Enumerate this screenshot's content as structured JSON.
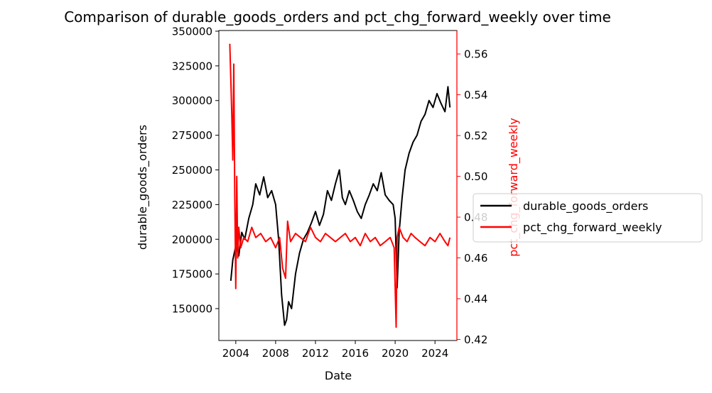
{
  "chart_data": {
    "type": "line",
    "title": "Comparison of durable_goods_orders and pct_chg_forward_weekly over time",
    "xlabel": "Date",
    "ylabel_left": "durable_goods_orders",
    "ylabel_right": "pct_chg_forward_weekly",
    "x_ticks": [
      "2004",
      "2008",
      "2012",
      "2016",
      "2020",
      "2024"
    ],
    "y_left_ticks": [
      "150000",
      "175000",
      "200000",
      "225000",
      "250000",
      "275000",
      "300000",
      "325000",
      "350000"
    ],
    "y_right_ticks": [
      "0.42",
      "0.44",
      "0.46",
      "0.48",
      "0.50",
      "0.52",
      "0.54",
      "0.56"
    ],
    "xlim": [
      2002.3,
      2026.2
    ],
    "ylim_left": [
      127000,
      350500
    ],
    "ylim_right": [
      0.4195,
      0.5715
    ],
    "grid": false,
    "legend_position": "center-right, outside plot",
    "series": [
      {
        "name": "durable_goods_orders",
        "axis": "left",
        "color": "#000000",
        "x": [
          2003.5,
          2003.7,
          2004.0,
          2004.3,
          2004.6,
          2004.9,
          2005.3,
          2005.7,
          2006.0,
          2006.4,
          2006.8,
          2007.2,
          2007.6,
          2008.0,
          2008.3,
          2008.6,
          2008.9,
          2009.1,
          2009.3,
          2009.6,
          2010.0,
          2010.4,
          2010.8,
          2011.2,
          2011.6,
          2012.0,
          2012.4,
          2012.8,
          2013.2,
          2013.6,
          2014.0,
          2014.4,
          2014.7,
          2015.0,
          2015.4,
          2015.8,
          2016.2,
          2016.6,
          2017.0,
          2017.4,
          2017.8,
          2018.2,
          2018.6,
          2019.0,
          2019.4,
          2019.8,
          2020.0,
          2020.2,
          2020.4,
          2020.7,
          2021.0,
          2021.4,
          2021.8,
          2022.2,
          2022.6,
          2023.0,
          2023.4,
          2023.8,
          2024.2,
          2024.6,
          2025.0,
          2025.3,
          2025.5
        ],
        "values": [
          170000,
          185000,
          195000,
          188000,
          205000,
          200000,
          215000,
          225000,
          240000,
          232000,
          245000,
          230000,
          235000,
          225000,
          200000,
          160000,
          138000,
          142000,
          155000,
          150000,
          175000,
          190000,
          200000,
          205000,
          212000,
          220000,
          210000,
          218000,
          235000,
          228000,
          240000,
          250000,
          230000,
          225000,
          235000,
          228000,
          220000,
          215000,
          225000,
          232000,
          240000,
          235000,
          248000,
          232000,
          228000,
          225000,
          215000,
          165000,
          205000,
          230000,
          250000,
          262000,
          270000,
          275000,
          285000,
          290000,
          300000,
          295000,
          305000,
          298000,
          292000,
          310000,
          295000
        ]
      },
      {
        "name": "pct_chg_forward_weekly",
        "axis": "right",
        "color": "#ff0000",
        "x": [
          2003.4,
          2003.5,
          2003.6,
          2003.7,
          2003.8,
          2003.9,
          2004.0,
          2004.1,
          2004.2,
          2004.3,
          2004.5,
          2004.8,
          2005.2,
          2005.6,
          2006.0,
          2006.5,
          2007.0,
          2007.5,
          2008.0,
          2008.4,
          2008.7,
          2009.0,
          2009.2,
          2009.5,
          2010.0,
          2010.5,
          2011.0,
          2011.5,
          2012.0,
          2012.5,
          2013.0,
          2013.5,
          2014.0,
          2014.5,
          2015.0,
          2015.5,
          2016.0,
          2016.5,
          2017.0,
          2017.5,
          2018.0,
          2018.5,
          2019.0,
          2019.5,
          2019.9,
          2020.1,
          2020.2,
          2020.4,
          2020.8,
          2021.2,
          2021.6,
          2022.0,
          2022.5,
          2023.0,
          2023.5,
          2024.0,
          2024.5,
          2025.0,
          2025.3,
          2025.5
        ],
        "values": [
          0.565,
          0.548,
          0.53,
          0.508,
          0.555,
          0.49,
          0.445,
          0.5,
          0.46,
          0.475,
          0.465,
          0.47,
          0.468,
          0.475,
          0.47,
          0.472,
          0.468,
          0.47,
          0.465,
          0.47,
          0.455,
          0.45,
          0.478,
          0.468,
          0.472,
          0.47,
          0.468,
          0.475,
          0.47,
          0.468,
          0.472,
          0.47,
          0.468,
          0.47,
          0.472,
          0.468,
          0.47,
          0.466,
          0.472,
          0.468,
          0.47,
          0.466,
          0.468,
          0.47,
          0.465,
          0.426,
          0.47,
          0.475,
          0.47,
          0.468,
          0.472,
          0.47,
          0.468,
          0.466,
          0.47,
          0.468,
          0.472,
          0.468,
          0.466,
          0.47
        ]
      }
    ]
  }
}
